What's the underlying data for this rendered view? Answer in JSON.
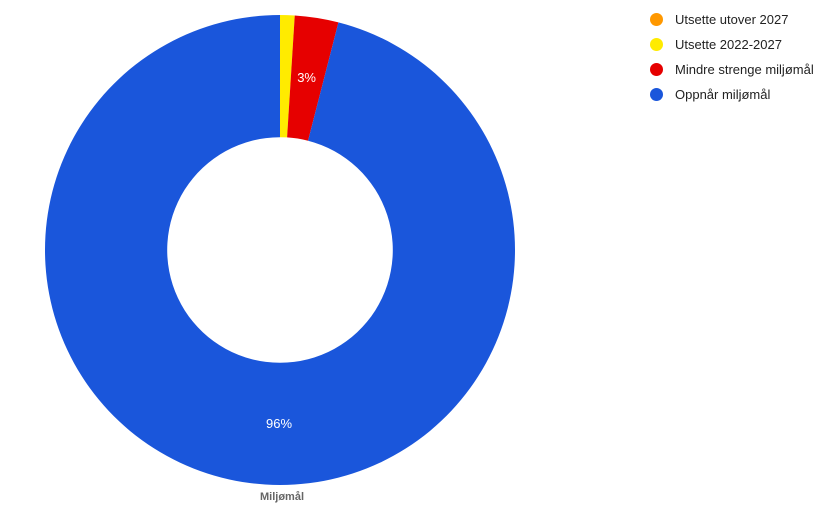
{
  "chart": {
    "type": "donut",
    "title": "Miljømål",
    "title_fontsize": 11,
    "title_color": "#666666",
    "background_color": "#ffffff",
    "inner_radius_ratio": 0.48,
    "slices": [
      {
        "label": "Utsette utover 2027",
        "value": 0,
        "percent_label": "",
        "color": "#ff9800"
      },
      {
        "label": "Utsette 2022-2027",
        "value": 1,
        "percent_label": "",
        "color": "#ffeb00"
      },
      {
        "label": "Mindre strenge miljømål",
        "value": 3,
        "percent_label": "3%",
        "color": "#e60000"
      },
      {
        "label": "Oppnår miljømål",
        "value": 96,
        "percent_label": "96%",
        "color": "#1a56db"
      }
    ],
    "slice_label_color": "#ffffff",
    "slice_label_fontsize": 13
  },
  "legend": {
    "items": [
      {
        "label": "Utsette utover 2027",
        "color": "#ff9800"
      },
      {
        "label": "Utsette 2022-2027",
        "color": "#ffeb00"
      },
      {
        "label": "Mindre strenge miljømål",
        "color": "#e60000"
      },
      {
        "label": "Oppnår miljømål",
        "color": "#1a56db"
      }
    ],
    "fontsize": 13,
    "text_color": "#222222"
  }
}
